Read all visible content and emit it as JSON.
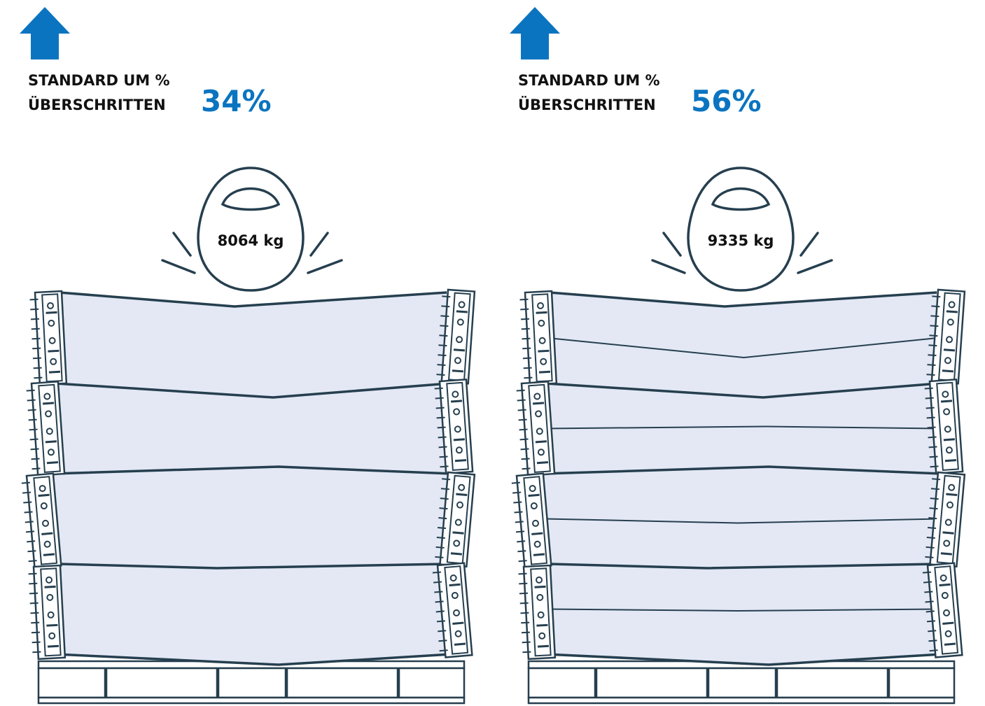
{
  "panels": [
    {
      "heading": [
        "STANDARD UM %",
        "ÜBERSCHRITTEN"
      ],
      "percent": "34%",
      "weight": "8064 kg"
    },
    {
      "heading": [
        "STANDARD UM %",
        "ÜBERSCHRITTEN"
      ],
      "percent": "56%",
      "weight": "9335 kg"
    }
  ]
}
